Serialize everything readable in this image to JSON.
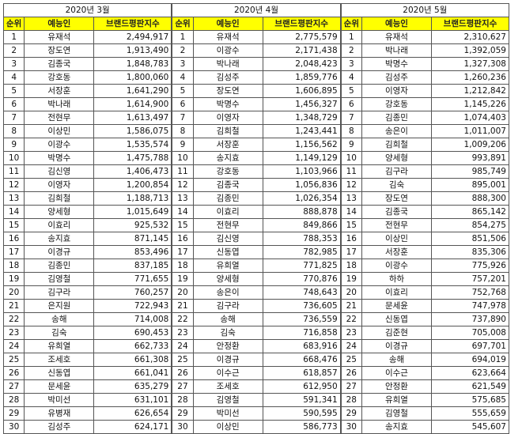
{
  "headers": {
    "rank": "순위",
    "name": "예능인",
    "score": "브랜드평판지수"
  },
  "months": [
    {
      "title": "2020년 3월",
      "rows": [
        [
          "1",
          "유재석",
          "2,494,917"
        ],
        [
          "2",
          "장도연",
          "1,913,490"
        ],
        [
          "3",
          "김종국",
          "1,848,783"
        ],
        [
          "4",
          "강호동",
          "1,800,060"
        ],
        [
          "5",
          "서장훈",
          "1,641,290"
        ],
        [
          "6",
          "박나래",
          "1,614,900"
        ],
        [
          "7",
          "전현무",
          "1,613,497"
        ],
        [
          "8",
          "이상민",
          "1,586,075"
        ],
        [
          "9",
          "이광수",
          "1,535,574"
        ],
        [
          "10",
          "박명수",
          "1,475,788"
        ],
        [
          "11",
          "김신영",
          "1,406,473"
        ],
        [
          "12",
          "이영자",
          "1,200,854"
        ],
        [
          "13",
          "김희철",
          "1,188,713"
        ],
        [
          "14",
          "양세형",
          "1,015,649"
        ],
        [
          "15",
          "이효리",
          "925,532"
        ],
        [
          "16",
          "송지효",
          "871,145"
        ],
        [
          "17",
          "이경규",
          "853,496"
        ],
        [
          "18",
          "김종민",
          "837,185"
        ],
        [
          "19",
          "김영철",
          "771,655"
        ],
        [
          "20",
          "김구라",
          "760,257"
        ],
        [
          "21",
          "은지원",
          "722,943"
        ],
        [
          "22",
          "송해",
          "714,008"
        ],
        [
          "23",
          "김숙",
          "690,453"
        ],
        [
          "24",
          "유희열",
          "662,733"
        ],
        [
          "25",
          "조세호",
          "661,308"
        ],
        [
          "26",
          "신동엽",
          "661,041"
        ],
        [
          "27",
          "문세윤",
          "635,279"
        ],
        [
          "28",
          "박미선",
          "631,101"
        ],
        [
          "29",
          "유병재",
          "626,654"
        ],
        [
          "30",
          "김성주",
          "624,171"
        ]
      ]
    },
    {
      "title": "2020년 4월",
      "rows": [
        [
          "1",
          "유재석",
          "2,775,579"
        ],
        [
          "2",
          "이광수",
          "2,171,438"
        ],
        [
          "3",
          "박나래",
          "2,048,423"
        ],
        [
          "4",
          "김성주",
          "1,859,776"
        ],
        [
          "5",
          "장도연",
          "1,606,895"
        ],
        [
          "6",
          "박명수",
          "1,456,327"
        ],
        [
          "7",
          "이영자",
          "1,348,729"
        ],
        [
          "8",
          "김희철",
          "1,243,441"
        ],
        [
          "9",
          "서장훈",
          "1,156,562"
        ],
        [
          "10",
          "송지효",
          "1,149,129"
        ],
        [
          "11",
          "강호동",
          "1,103,966"
        ],
        [
          "12",
          "김종국",
          "1,056,836"
        ],
        [
          "13",
          "김종민",
          "1,026,354"
        ],
        [
          "14",
          "이효리",
          "888,878"
        ],
        [
          "15",
          "전현무",
          "849,866"
        ],
        [
          "16",
          "김신영",
          "788,353"
        ],
        [
          "17",
          "신동엽",
          "782,985"
        ],
        [
          "18",
          "유희열",
          "771,825"
        ],
        [
          "19",
          "양세형",
          "770,876"
        ],
        [
          "20",
          "송은이",
          "748,643"
        ],
        [
          "21",
          "김구라",
          "736,605"
        ],
        [
          "22",
          "송해",
          "736,559"
        ],
        [
          "23",
          "김숙",
          "716,858"
        ],
        [
          "24",
          "안정환",
          "683,916"
        ],
        [
          "25",
          "이경규",
          "668,476"
        ],
        [
          "26",
          "이수근",
          "618,857"
        ],
        [
          "27",
          "조세호",
          "612,950"
        ],
        [
          "28",
          "김영철",
          "591,341"
        ],
        [
          "29",
          "박미선",
          "590,595"
        ],
        [
          "30",
          "이상민",
          "586,773"
        ]
      ]
    },
    {
      "title": "2020년 5월",
      "rows": [
        [
          "1",
          "유재석",
          "2,310,627"
        ],
        [
          "2",
          "박나래",
          "1,392,059"
        ],
        [
          "3",
          "박명수",
          "1,327,308"
        ],
        [
          "4",
          "김성주",
          "1,260,236"
        ],
        [
          "5",
          "이영자",
          "1,212,842"
        ],
        [
          "6",
          "강호동",
          "1,145,226"
        ],
        [
          "7",
          "김종민",
          "1,074,403"
        ],
        [
          "8",
          "송은이",
          "1,011,007"
        ],
        [
          "9",
          "김희철",
          "1,009,206"
        ],
        [
          "10",
          "양세형",
          "993,891"
        ],
        [
          "11",
          "김구라",
          "985,749"
        ],
        [
          "12",
          "김숙",
          "895,001"
        ],
        [
          "13",
          "장도연",
          "888,300"
        ],
        [
          "14",
          "김종국",
          "865,142"
        ],
        [
          "15",
          "전현무",
          "854,275"
        ],
        [
          "16",
          "이상민",
          "851,506"
        ],
        [
          "17",
          "서장훈",
          "835,306"
        ],
        [
          "18",
          "이광수",
          "775,926"
        ],
        [
          "19",
          "하하",
          "757,201"
        ],
        [
          "20",
          "이효리",
          "752,768"
        ],
        [
          "21",
          "문세윤",
          "747,978"
        ],
        [
          "22",
          "신동엽",
          "737,890"
        ],
        [
          "23",
          "김준현",
          "705,008"
        ],
        [
          "24",
          "이경규",
          "697,701"
        ],
        [
          "25",
          "송해",
          "694,019"
        ],
        [
          "26",
          "이수근",
          "623,664"
        ],
        [
          "27",
          "안정환",
          "621,549"
        ],
        [
          "28",
          "유희열",
          "575,685"
        ],
        [
          "29",
          "김영철",
          "555,659"
        ],
        [
          "30",
          "송지효",
          "545,607"
        ]
      ]
    }
  ]
}
